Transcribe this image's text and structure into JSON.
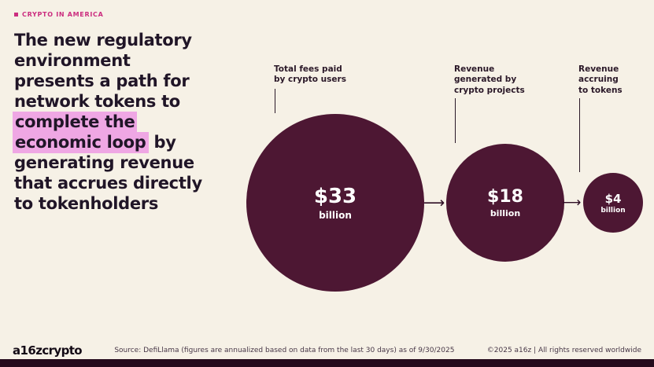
{
  "colors": {
    "background": "#f6f1e6",
    "kicker": "#cb2d7f",
    "heading": "#201527",
    "highlight": "#efa7e4",
    "bubble": "#4d1733",
    "label": "#2a1828",
    "arrow": "#2e0d24",
    "muted": "#473747",
    "logo": "#140b16",
    "strip": "#250a1c"
  },
  "kicker": {
    "label": "CRYPTO IN AMERICA"
  },
  "headline": {
    "seg1": "The new regulatory\nenvironment\npresents a path for\nnetwork tokens to\n",
    "highlight1": "complete the",
    "seg2": "\n",
    "highlight2": "economic loop",
    "seg3": " by\ngenerating revenue\nthat accrues directly\nto tokenholders"
  },
  "chart": {
    "items": [
      {
        "label": "Total fees paid\nby crypto users",
        "value": "$33",
        "unit": "billion"
      },
      {
        "label": "Revenue\ngenerated by\ncrypto projects",
        "value": "$18",
        "unit": "billion"
      },
      {
        "label": "Revenue\naccruing\nto tokens",
        "value": "$4",
        "unit": "billion"
      }
    ]
  },
  "chart_data": {
    "type": "proportional_area",
    "title": "",
    "categories": [
      "Total fees paid by crypto users",
      "Revenue generated by crypto projects",
      "Revenue accruing to tokens"
    ],
    "values": [
      33,
      18,
      4
    ],
    "value_labels": [
      "$33 billion",
      "$18 billion",
      "$4 billion"
    ],
    "unit": "billion (USD)",
    "flow_direction": "left-to-right",
    "legend": "none",
    "source": "DefiLlama (figures are annualized based on data from the last 30 days) as of 9/30/2025"
  },
  "icons": {
    "arrow_right": "⟶"
  },
  "footer": {
    "logo": "a16zcrypto",
    "source": "Source: DefiLlama (figures are annualized based on data from the last 30 days) as of 9/30/2025",
    "copyright": "©2025 a16z | All rights reserved worldwide"
  }
}
